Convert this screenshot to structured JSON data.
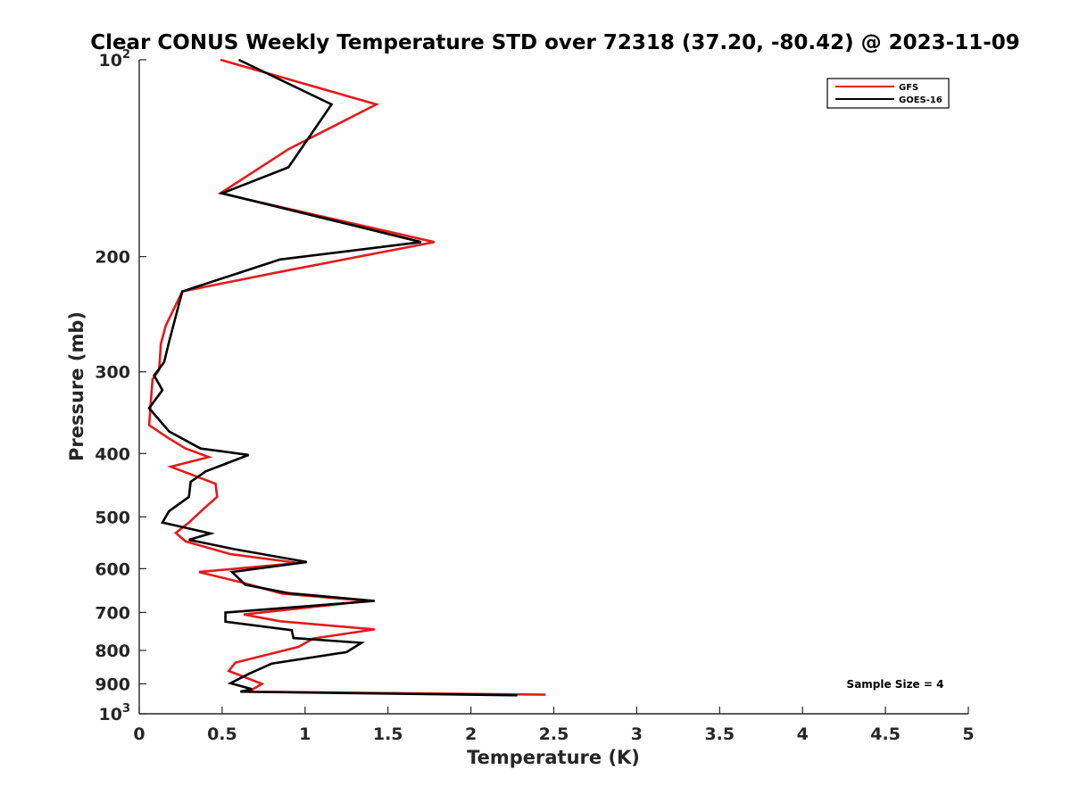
{
  "chart_data": {
    "type": "line",
    "title": "Clear CONUS Weekly Temperature STD over 72318 (37.20, -80.42) @ 2023-11-09",
    "xlabel": "Temperature (K)",
    "ylabel": "Pressure (mb)",
    "xlim": [
      0,
      5
    ],
    "ylim": [
      100,
      1000
    ],
    "yscale": "log",
    "y_reversed": true,
    "grid": false,
    "legend_position": "top-right",
    "x_ticks": [
      {
        "value": 0,
        "label": "0"
      },
      {
        "value": 0.5,
        "label": "0.5"
      },
      {
        "value": 1,
        "label": "1"
      },
      {
        "value": 1.5,
        "label": "1.5"
      },
      {
        "value": 2,
        "label": "2"
      },
      {
        "value": 2.5,
        "label": "2.5"
      },
      {
        "value": 3,
        "label": "3"
      },
      {
        "value": 3.5,
        "label": "3.5"
      },
      {
        "value": 4,
        "label": "4"
      },
      {
        "value": 4.5,
        "label": "4.5"
      },
      {
        "value": 5,
        "label": "5"
      }
    ],
    "y_ticks": [
      {
        "value": 100,
        "base": "10",
        "exp": "2"
      },
      {
        "value": 200,
        "base": "200",
        "exp": ""
      },
      {
        "value": 300,
        "base": "300",
        "exp": ""
      },
      {
        "value": 400,
        "base": "400",
        "exp": ""
      },
      {
        "value": 500,
        "base": "500",
        "exp": ""
      },
      {
        "value": 600,
        "base": "600",
        "exp": ""
      },
      {
        "value": 700,
        "base": "700",
        "exp": ""
      },
      {
        "value": 800,
        "base": "800",
        "exp": ""
      },
      {
        "value": 900,
        "base": "900",
        "exp": ""
      },
      {
        "value": 1000,
        "base": "10",
        "exp": "3"
      }
    ],
    "annotation": "Sample Size = 4",
    "series": [
      {
        "name": "GFS",
        "color": "#e31a1c",
        "points": [
          [
            0.49,
            100
          ],
          [
            1.43,
            117
          ],
          [
            0.9,
            137
          ],
          [
            0.49,
            160
          ],
          [
            1.78,
            190
          ],
          [
            0.85,
            211
          ],
          [
            0.26,
            226
          ],
          [
            0.16,
            255
          ],
          [
            0.13,
            272
          ],
          [
            0.12,
            298
          ],
          [
            0.08,
            308
          ],
          [
            0.07,
            333
          ],
          [
            0.06,
            362
          ],
          [
            0.17,
            378
          ],
          [
            0.28,
            393
          ],
          [
            0.42,
            405
          ],
          [
            0.19,
            419
          ],
          [
            0.46,
            445
          ],
          [
            0.47,
            466
          ],
          [
            0.4,
            483
          ],
          [
            0.3,
            510
          ],
          [
            0.22,
            529
          ],
          [
            0.28,
            545
          ],
          [
            0.55,
            570
          ],
          [
            0.96,
            588
          ],
          [
            0.36,
            607
          ],
          [
            0.62,
            630
          ],
          [
            0.86,
            655
          ],
          [
            1.38,
            672
          ],
          [
            0.63,
            705
          ],
          [
            0.85,
            722
          ],
          [
            1.42,
            743
          ],
          [
            1.05,
            767
          ],
          [
            0.96,
            790
          ],
          [
            0.58,
            835
          ],
          [
            0.54,
            860
          ],
          [
            0.74,
            900
          ],
          [
            0.66,
            925
          ],
          [
            2.45,
            935
          ]
        ]
      },
      {
        "name": "GOES-16",
        "color": "#000000",
        "points": [
          [
            0.6,
            100
          ],
          [
            1.16,
            117
          ],
          [
            0.9,
            146
          ],
          [
            0.5,
            160
          ],
          [
            1.7,
            190
          ],
          [
            0.85,
            202
          ],
          [
            0.26,
            226
          ],
          [
            0.18,
            270
          ],
          [
            0.15,
            290
          ],
          [
            0.09,
            304
          ],
          [
            0.14,
            320
          ],
          [
            0.06,
            341
          ],
          [
            0.18,
            370
          ],
          [
            0.37,
            393
          ],
          [
            0.66,
            402
          ],
          [
            0.4,
            426
          ],
          [
            0.31,
            442
          ],
          [
            0.3,
            466
          ],
          [
            0.18,
            490
          ],
          [
            0.14,
            510
          ],
          [
            0.43,
            530
          ],
          [
            0.3,
            542
          ],
          [
            0.57,
            560
          ],
          [
            1.01,
            586
          ],
          [
            0.56,
            607
          ],
          [
            0.64,
            635
          ],
          [
            0.9,
            654
          ],
          [
            1.42,
            672
          ],
          [
            0.52,
            700
          ],
          [
            0.52,
            723
          ],
          [
            0.92,
            745
          ],
          [
            0.93,
            766
          ],
          [
            1.34,
            779
          ],
          [
            1.25,
            805
          ],
          [
            0.8,
            838
          ],
          [
            0.66,
            869
          ],
          [
            0.55,
            898
          ],
          [
            0.68,
            917
          ],
          [
            0.61,
            925
          ],
          [
            2.28,
            937
          ]
        ]
      }
    ]
  }
}
